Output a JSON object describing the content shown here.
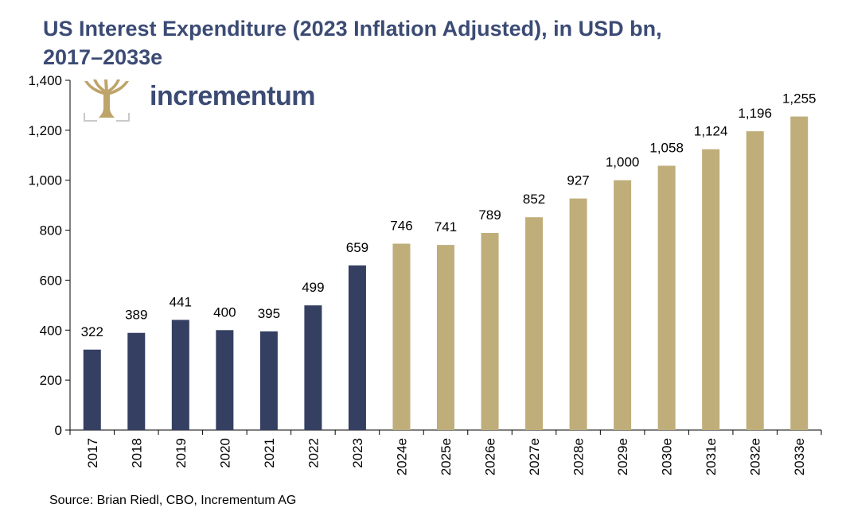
{
  "title_line1": "US Interest Expenditure (2023 Inflation Adjusted), in USD bn,",
  "title_line2": "2017–2033e",
  "source": "Source: Brian Riedl, CBO, Incrementum AG",
  "logo": {
    "text": "incrementum",
    "icon": "tree-icon"
  },
  "colors": {
    "actual": "#343f62",
    "estimate": "#bfae7a",
    "title": "#3b4b74",
    "logo_gold": "#bfa46a"
  },
  "chart_data": {
    "type": "bar",
    "categories": [
      "2017",
      "2018",
      "2019",
      "2020",
      "2021",
      "2022",
      "2023",
      "2024e",
      "2025e",
      "2026e",
      "2027e",
      "2028e",
      "2029e",
      "2030e",
      "2031e",
      "2032e",
      "2033e"
    ],
    "values": [
      322,
      389,
      441,
      400,
      395,
      499,
      659,
      746,
      741,
      789,
      852,
      927,
      1000,
      1058,
      1124,
      1196,
      1255
    ],
    "data_labels": [
      "322",
      "389",
      "441",
      "400",
      "395",
      "499",
      "659",
      "746",
      "741",
      "789",
      "852",
      "927",
      "1,000",
      "1,058",
      "1,124",
      "1,196",
      "1,255"
    ],
    "bar_colors": [
      "#343f62",
      "#343f62",
      "#343f62",
      "#343f62",
      "#343f62",
      "#343f62",
      "#343f62",
      "#bfae7a",
      "#bfae7a",
      "#bfae7a",
      "#bfae7a",
      "#bfae7a",
      "#bfae7a",
      "#bfae7a",
      "#bfae7a",
      "#bfae7a",
      "#bfae7a"
    ],
    "ylim": [
      0,
      1400
    ],
    "yticks": [
      0,
      200,
      400,
      600,
      800,
      1000,
      1200,
      1400
    ],
    "ytick_labels": [
      "0",
      "200",
      "400",
      "600",
      "800",
      "1,000",
      "1,200",
      "1,400"
    ],
    "xlabel": "",
    "ylabel": "",
    "grid": false
  }
}
